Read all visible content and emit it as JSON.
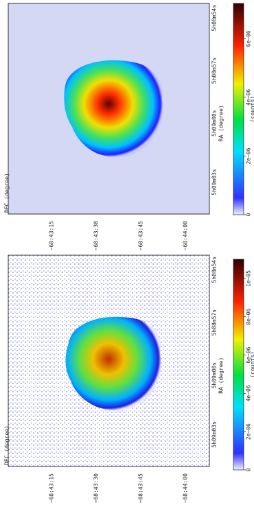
{
  "chart_data": [
    {
      "type": "image",
      "xlabel": "RA (degree)",
      "ylabel": "DEC (degree)",
      "x_tick_labels": [
        "5h09m03s",
        "5h09m00s",
        "5h08m57s",
        "5h08m54s"
      ],
      "y_tick_labels": [
        "−68:43:15",
        "−68:43:30",
        "−68:43:45",
        "−68:44:00"
      ],
      "colorbar_label": "(counts)",
      "clim": [
        0,
        7.2e-06
      ],
      "colorbar_ticks": [
        0,
        {
          "value": 2e-06,
          "label": "2e−06"
        },
        {
          "value": 4e-06,
          "label": "4e−06"
        },
        {
          "value": 6e-06,
          "label": "6e−06"
        }
      ]
    },
    {
      "type": "image",
      "xlabel": "RA (degree)",
      "ylabel": "DEC (degree)",
      "x_tick_labels": [
        "5h09m03s",
        "5h09m00s",
        "5h08m57s",
        "5h08m54s"
      ],
      "y_tick_labels": [
        "−68:43:15",
        "−68:43:30",
        "−68:43:45",
        "−68:44:00"
      ],
      "colorbar_label": "(counts)",
      "clim": [
        0,
        1.1e-05
      ],
      "colorbar_ticks": [
        0,
        {
          "value": 2e-06,
          "label": "2e−06"
        },
        {
          "value": 4e-06,
          "label": "4e−06"
        },
        {
          "value": 6e-06,
          "label": "6e−06"
        },
        {
          "value": 8e-06,
          "label": "8e−06"
        },
        {
          "value": 1e-05,
          "label": "1e−05"
        }
      ]
    }
  ]
}
